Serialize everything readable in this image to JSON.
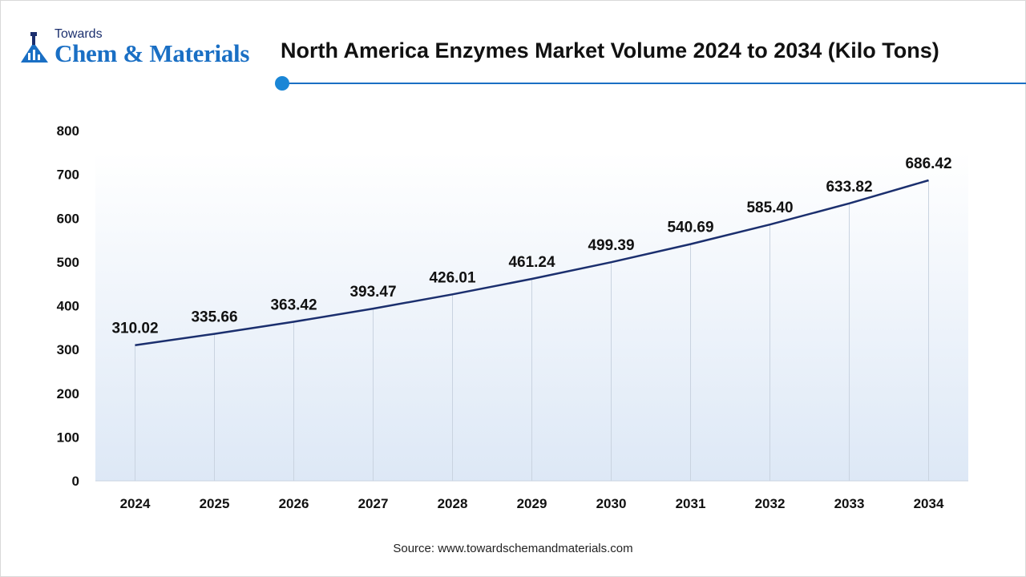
{
  "brand": {
    "small": "Towards",
    "big": "Chem & Materials"
  },
  "title": "North America Enzymes Market Volume 2024 to 2034 (Kilo Tons)",
  "source": "Source: www.towardschemandmaterials.com",
  "colors": {
    "accent": "#1a6fc4",
    "line": "#1b2f6e",
    "plot_bg_top": "#ffffff",
    "plot_bg_bottom": "#dde8f6"
  },
  "chart_data": {
    "type": "line",
    "x": [
      "2024",
      "2025",
      "2026",
      "2027",
      "2028",
      "2029",
      "2030",
      "2031",
      "2032",
      "2033",
      "2034"
    ],
    "values": [
      310.02,
      335.66,
      363.42,
      393.47,
      426.01,
      461.24,
      499.39,
      540.69,
      585.4,
      633.82,
      686.42
    ],
    "value_labels": [
      "310.02",
      "335.66",
      "363.42",
      "393.47",
      "426.01",
      "461.24",
      "499.39",
      "540.69",
      "585.40",
      "633.82",
      "686.42"
    ],
    "y_ticks": [
      "0",
      "100",
      "200",
      "300",
      "400",
      "500",
      "600",
      "700",
      "800"
    ],
    "ylim": [
      0,
      800
    ],
    "xlabel": "",
    "ylabel": "",
    "grid": "vertical lines at categories",
    "legend": "none"
  }
}
